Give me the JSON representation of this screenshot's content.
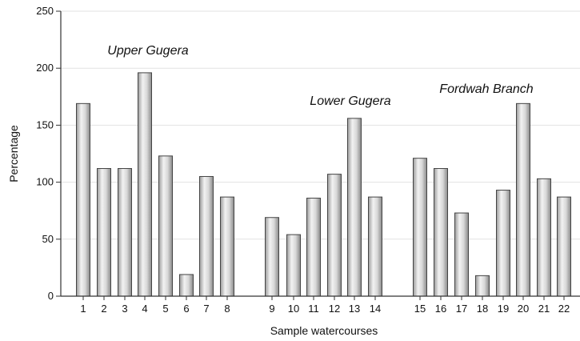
{
  "chart_data": {
    "type": "bar",
    "title": "",
    "xlabel": "Sample watercourses",
    "ylabel": "Percentage",
    "ylim": [
      0,
      250
    ],
    "yticks": [
      0,
      50,
      100,
      150,
      200,
      250
    ],
    "grid": true,
    "categories": [
      "1",
      "2",
      "3",
      "4",
      "5",
      "6",
      "7",
      "8",
      "9",
      "10",
      "11",
      "12",
      "13",
      "14",
      "15",
      "16",
      "17",
      "18",
      "19",
      "20",
      "21",
      "22"
    ],
    "values": [
      169,
      112,
      112,
      196,
      123,
      19,
      105,
      87,
      69,
      54,
      86,
      107,
      156,
      87,
      121,
      112,
      73,
      18,
      93,
      169,
      103,
      87
    ],
    "groups": [
      {
        "label": "Upper Gugera",
        "start": 0,
        "end": 7
      },
      {
        "label": "Lower Gugera",
        "start": 8,
        "end": 13
      },
      {
        "label": "Fordwah Branch",
        "start": 14,
        "end": 21
      }
    ],
    "colors": {
      "bar": "#cfcfcf",
      "bar_edge": "#444444",
      "grid": "#e2e2e2",
      "axis": "#333333"
    }
  }
}
